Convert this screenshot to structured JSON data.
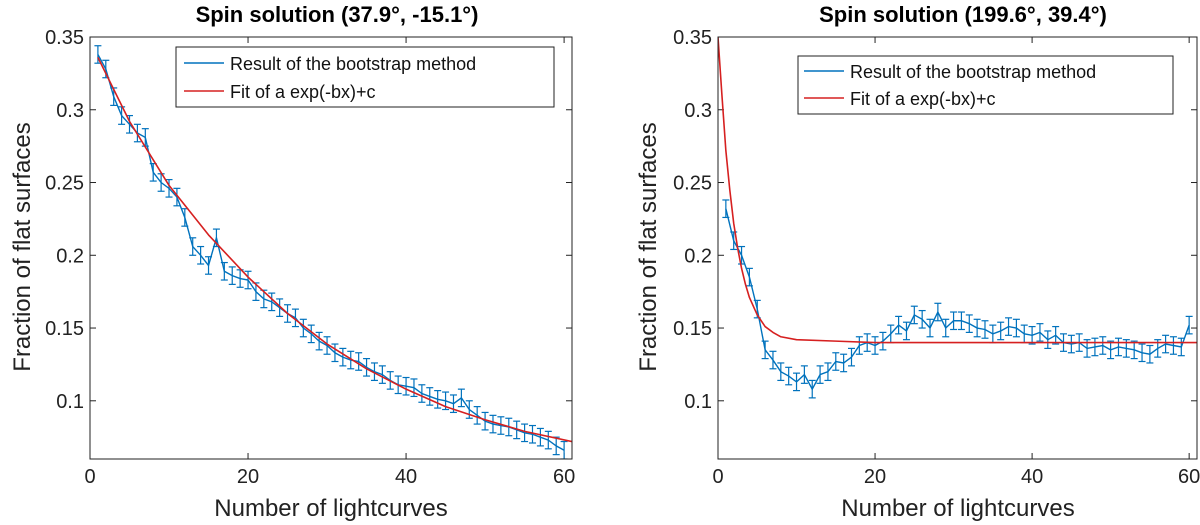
{
  "chart_data": [
    {
      "type": "line",
      "title": "Spin solution (37.9°, -15.1°)",
      "xlabel": "Number of lightcurves",
      "ylabel": "Fraction of flat surfaces",
      "xlim": [
        0,
        61
      ],
      "ylim": [
        0.06,
        0.35
      ],
      "xticks": [
        0,
        20,
        40,
        60
      ],
      "yticks": [
        0.1,
        0.15,
        0.2,
        0.25,
        0.3,
        0.35
      ],
      "ytick_labels": [
        "0.1",
        "0.15",
        "0.2",
        "0.25",
        "0.3",
        "0.35"
      ],
      "xtick_labels": [
        "0",
        "20",
        "40",
        "60"
      ],
      "legend": {
        "position": "top-right",
        "entries": [
          "Result of the bootstrap method",
          "Fit of a exp(-bx)+c"
        ]
      },
      "series": [
        {
          "name": "Result of the bootstrap method",
          "color": "#0072BD",
          "x": [
            1,
            2,
            3,
            4,
            5,
            6,
            7,
            8,
            9,
            10,
            11,
            12,
            13,
            14,
            15,
            16,
            17,
            18,
            19,
            20,
            21,
            22,
            23,
            24,
            25,
            26,
            27,
            28,
            29,
            30,
            31,
            32,
            33,
            34,
            35,
            36,
            37,
            38,
            39,
            40,
            41,
            42,
            43,
            44,
            45,
            46,
            47,
            48,
            49,
            50,
            51,
            52,
            53,
            54,
            55,
            56,
            57,
            58,
            59,
            60
          ],
          "y": [
            0.338,
            0.328,
            0.309,
            0.296,
            0.29,
            0.284,
            0.281,
            0.257,
            0.25,
            0.246,
            0.24,
            0.226,
            0.206,
            0.2,
            0.193,
            0.212,
            0.189,
            0.186,
            0.184,
            0.183,
            0.175,
            0.17,
            0.168,
            0.164,
            0.16,
            0.157,
            0.15,
            0.146,
            0.141,
            0.138,
            0.133,
            0.13,
            0.128,
            0.127,
            0.123,
            0.12,
            0.118,
            0.114,
            0.111,
            0.11,
            0.109,
            0.105,
            0.103,
            0.101,
            0.1,
            0.098,
            0.102,
            0.094,
            0.09,
            0.086,
            0.084,
            0.083,
            0.082,
            0.08,
            0.078,
            0.077,
            0.075,
            0.073,
            0.069,
            0.066
          ],
          "err": 0.006
        },
        {
          "name": "Fit of a exp(-bx)+c",
          "color": "#D62020",
          "x": [
            1,
            5,
            10,
            15,
            20,
            25,
            30,
            35,
            40,
            45,
            50,
            55,
            61
          ],
          "y": [
            0.336,
            0.292,
            0.248,
            0.214,
            0.185,
            0.16,
            0.139,
            0.122,
            0.108,
            0.096,
            0.087,
            0.079,
            0.072
          ]
        }
      ]
    },
    {
      "type": "line",
      "title": "Spin solution (199.6°, 39.4°)",
      "xlabel": "Number of lightcurves",
      "ylabel": "Fraction of flat surfaces",
      "xlim": [
        0,
        61
      ],
      "ylim": [
        0.06,
        0.35
      ],
      "xticks": [
        0,
        20,
        40,
        60
      ],
      "yticks": [
        0.1,
        0.15,
        0.2,
        0.25,
        0.3,
        0.35
      ],
      "ytick_labels": [
        "0.1",
        "0.15",
        "0.2",
        "0.25",
        "0.3",
        "0.35"
      ],
      "xtick_labels": [
        "0",
        "20",
        "40",
        "60"
      ],
      "legend": {
        "position": "top-right",
        "entries": [
          "Result of the bootstrap method",
          "Fit of a exp(-bx)+c"
        ]
      },
      "series": [
        {
          "name": "Result of the bootstrap method",
          "color": "#0072BD",
          "x": [
            1,
            2,
            3,
            4,
            5,
            6,
            7,
            8,
            9,
            10,
            11,
            12,
            13,
            14,
            15,
            16,
            17,
            18,
            19,
            20,
            21,
            22,
            23,
            24,
            25,
            26,
            27,
            28,
            29,
            30,
            31,
            32,
            33,
            34,
            35,
            36,
            37,
            38,
            39,
            40,
            41,
            42,
            43,
            44,
            45,
            46,
            47,
            48,
            49,
            50,
            51,
            52,
            53,
            54,
            55,
            56,
            57,
            58,
            59,
            60
          ],
          "y": [
            0.232,
            0.21,
            0.2,
            0.185,
            0.163,
            0.135,
            0.128,
            0.12,
            0.117,
            0.113,
            0.118,
            0.108,
            0.118,
            0.12,
            0.127,
            0.126,
            0.13,
            0.138,
            0.14,
            0.138,
            0.141,
            0.146,
            0.152,
            0.148,
            0.159,
            0.156,
            0.15,
            0.161,
            0.15,
            0.155,
            0.155,
            0.153,
            0.15,
            0.149,
            0.146,
            0.148,
            0.151,
            0.15,
            0.146,
            0.145,
            0.147,
            0.142,
            0.145,
            0.14,
            0.139,
            0.14,
            0.136,
            0.137,
            0.138,
            0.135,
            0.137,
            0.136,
            0.135,
            0.133,
            0.132,
            0.136,
            0.139,
            0.138,
            0.137,
            0.152
          ],
          "err": 0.006
        },
        {
          "name": "Fit of a exp(-bx)+c",
          "color": "#D62020",
          "x": [
            0,
            0.5,
            1,
            1.5,
            2,
            2.5,
            3,
            3.5,
            4,
            5,
            6,
            7,
            8,
            10,
            15,
            20,
            30,
            40,
            61
          ],
          "y": [
            0.35,
            0.31,
            0.272,
            0.245,
            0.222,
            0.205,
            0.191,
            0.18,
            0.171,
            0.159,
            0.151,
            0.147,
            0.144,
            0.142,
            0.141,
            0.14,
            0.14,
            0.14,
            0.14
          ]
        }
      ]
    }
  ]
}
